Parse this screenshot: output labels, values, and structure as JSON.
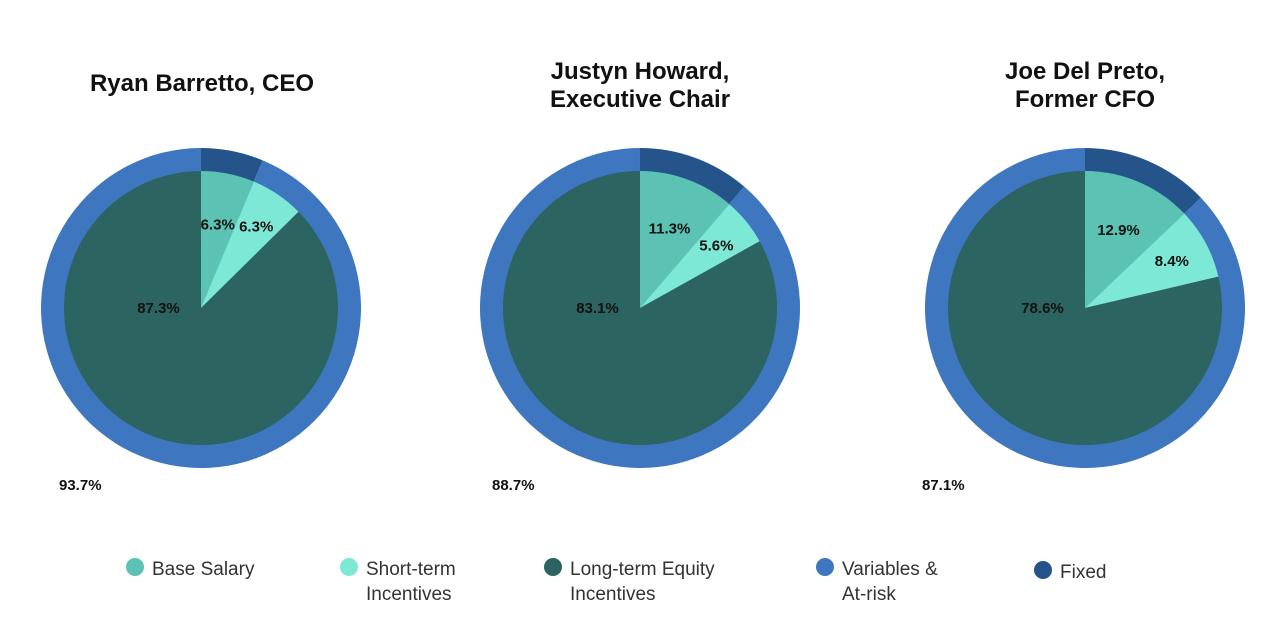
{
  "colors": {
    "base_salary": "#5cc2b4",
    "short_term": "#7de8d6",
    "long_term": "#2b6461",
    "variable": "#3f76c0",
    "fixed": "#25548a"
  },
  "legend": [
    {
      "key": "base_salary",
      "lines": [
        "Base Salary"
      ]
    },
    {
      "key": "short_term",
      "lines": [
        "Short-term",
        "Incentives"
      ]
    },
    {
      "key": "long_term",
      "lines": [
        "Long-term Equity",
        "Incentives"
      ]
    },
    {
      "key": "variable",
      "lines": [
        "Variables &",
        "At-risk"
      ]
    },
    {
      "key": "fixed",
      "lines": [
        "Fixed"
      ]
    }
  ],
  "chart_data": [
    {
      "type": "pie",
      "title_lines": [
        "Ryan Barretto, CEO"
      ],
      "inner": {
        "categories": [
          "Base Salary",
          "Short-term Incentives",
          "Long-term Equity Incentives"
        ],
        "values": [
          6.3,
          6.3,
          87.3
        ],
        "labels": [
          "6.3%",
          "6.3%",
          "87.3%"
        ]
      },
      "outer": {
        "categories": [
          "Variables & At-risk",
          "Fixed"
        ],
        "values": [
          93.7,
          6.3
        ],
        "variable_label": "93.7%"
      }
    },
    {
      "type": "pie",
      "title_lines": [
        "Justyn Howard,",
        "Executive Chair"
      ],
      "inner": {
        "categories": [
          "Base Salary",
          "Short-term Incentives",
          "Long-term Equity Incentives"
        ],
        "values": [
          11.3,
          5.6,
          83.1
        ],
        "labels": [
          "11.3%",
          "5.6%",
          "83.1%"
        ]
      },
      "outer": {
        "categories": [
          "Variables & At-risk",
          "Fixed"
        ],
        "values": [
          88.7,
          11.3
        ],
        "variable_label": "88.7%"
      }
    },
    {
      "type": "pie",
      "title_lines": [
        "Joe Del Preto,",
        "Former CFO"
      ],
      "inner": {
        "categories": [
          "Base Salary",
          "Short-term Incentives",
          "Long-term Equity Incentives"
        ],
        "values": [
          12.9,
          8.4,
          78.6
        ],
        "labels": [
          "12.9%",
          "8.4%",
          "78.6%"
        ]
      },
      "outer": {
        "categories": [
          "Variables & At-risk",
          "Fixed"
        ],
        "values": [
          87.1,
          12.9
        ],
        "variable_label": "87.1%"
      }
    }
  ]
}
